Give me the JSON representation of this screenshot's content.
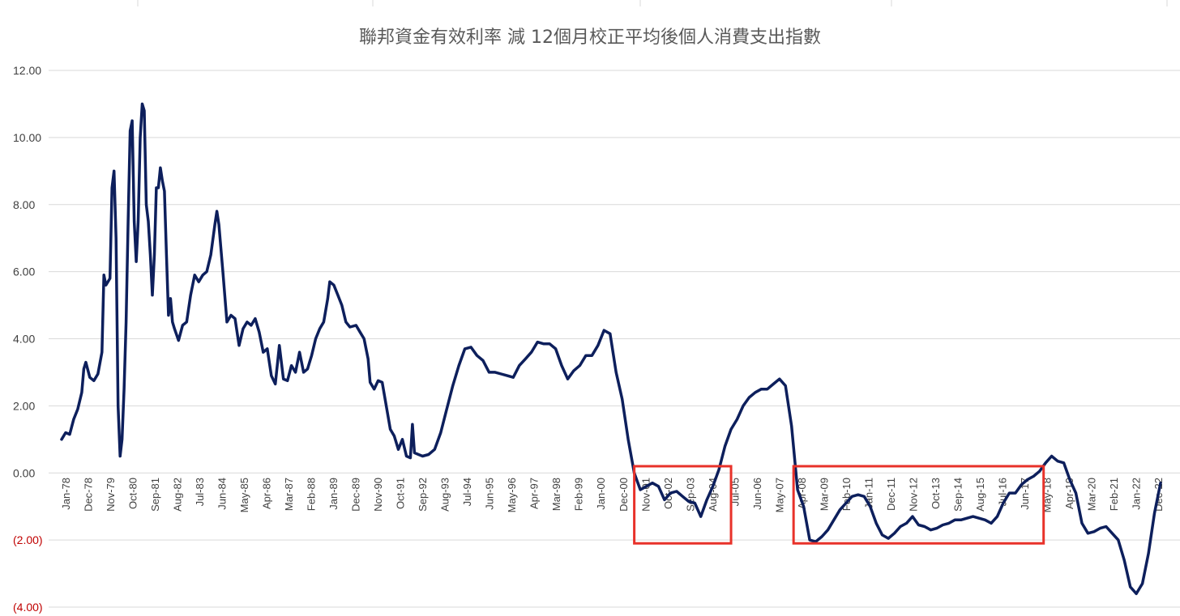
{
  "chart_data": {
    "type": "line",
    "title": "聯邦資金有效利率 減 12個月校正平均後個人消費支出指數",
    "xlabel": "",
    "ylabel": "",
    "ylim": [
      -4,
      12
    ],
    "grid": "horizontal",
    "y_ticks": [
      {
        "value": 12,
        "label": "12.00",
        "color": "#404040"
      },
      {
        "value": 10,
        "label": "10.00",
        "color": "#404040"
      },
      {
        "value": 8,
        "label": "8.00",
        "color": "#404040"
      },
      {
        "value": 6,
        "label": "6.00",
        "color": "#404040"
      },
      {
        "value": 4,
        "label": "4.00",
        "color": "#404040"
      },
      {
        "value": 2,
        "label": "2.00",
        "color": "#404040"
      },
      {
        "value": 0,
        "label": "0.00",
        "color": "#404040"
      },
      {
        "value": -2,
        "label": "(2.00)",
        "color": "#c00000"
      },
      {
        "value": -4,
        "label": "(4.00)",
        "color": "#c00000"
      }
    ],
    "x_tick_labels": [
      "Jan-78",
      "Dec-78",
      "Nov-79",
      "Oct-80",
      "Sep-81",
      "Aug-82",
      "Jul-83",
      "Jun-84",
      "May-85",
      "Apr-86",
      "Mar-87",
      "Feb-88",
      "Jan-89",
      "Dec-89",
      "Nov-90",
      "Oct-91",
      "Sep-92",
      "Aug-93",
      "Jul-94",
      "Jun-95",
      "May-96",
      "Apr-97",
      "Mar-98",
      "Feb-99",
      "Jan-00",
      "Dec-00",
      "Nov-01",
      "Oct-02",
      "Sep-03",
      "Aug-04",
      "Jul-05",
      "Jun-06",
      "May-07",
      "Apr-08",
      "Mar-09",
      "Feb-10",
      "Jan-11",
      "Dec-11",
      "Nov-12",
      "Oct-13",
      "Sep-14",
      "Aug-15",
      "Jul-16",
      "Jun-17",
      "May-18",
      "Apr-19",
      "Mar-20",
      "Feb-21",
      "Jan-22",
      "Dec-22"
    ],
    "series": [
      {
        "color": "#0d1f5c",
        "points": [
          [
            "1978-01",
            1.0
          ],
          [
            "1978-03",
            1.2
          ],
          [
            "1978-05",
            1.15
          ],
          [
            "1978-07",
            1.6
          ],
          [
            "1978-09",
            1.9
          ],
          [
            "1978-11",
            2.4
          ],
          [
            "1978-12",
            3.1
          ],
          [
            "1979-01",
            3.3
          ],
          [
            "1979-03",
            2.85
          ],
          [
            "1979-05",
            2.75
          ],
          [
            "1979-07",
            2.95
          ],
          [
            "1979-09",
            3.6
          ],
          [
            "1979-10",
            5.9
          ],
          [
            "1979-11",
            5.6
          ],
          [
            "1979-12",
            5.7
          ],
          [
            "1980-01",
            5.8
          ],
          [
            "1980-02",
            8.5
          ],
          [
            "1980-03",
            9.0
          ],
          [
            "1980-04",
            7.0
          ],
          [
            "1980-05",
            2.0
          ],
          [
            "1980-06",
            0.5
          ],
          [
            "1980-07",
            1.0
          ],
          [
            "1980-08",
            2.5
          ],
          [
            "1980-09",
            4.5
          ],
          [
            "1980-10",
            7.5
          ],
          [
            "1980-11",
            10.2
          ],
          [
            "1980-12",
            10.5
          ],
          [
            "1981-01",
            7.5
          ],
          [
            "1981-02",
            6.3
          ],
          [
            "1981-03",
            7.5
          ],
          [
            "1981-04",
            10.0
          ],
          [
            "1981-05",
            11.0
          ],
          [
            "1981-06",
            10.8
          ],
          [
            "1981-07",
            8.0
          ],
          [
            "1981-08",
            7.5
          ],
          [
            "1981-09",
            6.5
          ],
          [
            "1981-10",
            5.3
          ],
          [
            "1981-11",
            6.5
          ],
          [
            "1981-12",
            8.5
          ],
          [
            "1982-01",
            8.5
          ],
          [
            "1982-02",
            9.1
          ],
          [
            "1982-03",
            8.7
          ],
          [
            "1982-04",
            8.4
          ],
          [
            "1982-05",
            6.5
          ],
          [
            "1982-06",
            4.7
          ],
          [
            "1982-07",
            5.2
          ],
          [
            "1982-08",
            4.5
          ],
          [
            "1982-09",
            4.3
          ],
          [
            "1982-11",
            3.95
          ],
          [
            "1983-01",
            4.4
          ],
          [
            "1983-03",
            4.5
          ],
          [
            "1983-05",
            5.3
          ],
          [
            "1983-07",
            5.9
          ],
          [
            "1983-09",
            5.7
          ],
          [
            "1983-11",
            5.9
          ],
          [
            "1984-01",
            6.0
          ],
          [
            "1984-03",
            6.5
          ],
          [
            "1984-05",
            7.4
          ],
          [
            "1984-06",
            7.8
          ],
          [
            "1984-07",
            7.4
          ],
          [
            "1984-09",
            6.0
          ],
          [
            "1984-11",
            4.5
          ],
          [
            "1985-01",
            4.7
          ],
          [
            "1985-03",
            4.6
          ],
          [
            "1985-05",
            3.8
          ],
          [
            "1985-07",
            4.3
          ],
          [
            "1985-09",
            4.5
          ],
          [
            "1985-11",
            4.4
          ],
          [
            "1986-01",
            4.6
          ],
          [
            "1986-03",
            4.2
          ],
          [
            "1986-05",
            3.6
          ],
          [
            "1986-07",
            3.7
          ],
          [
            "1986-09",
            2.9
          ],
          [
            "1986-11",
            2.65
          ],
          [
            "1987-01",
            3.8
          ],
          [
            "1987-03",
            2.8
          ],
          [
            "1987-05",
            2.75
          ],
          [
            "1987-07",
            3.2
          ],
          [
            "1987-09",
            3.0
          ],
          [
            "1987-11",
            3.6
          ],
          [
            "1988-01",
            3.0
          ],
          [
            "1988-03",
            3.1
          ],
          [
            "1988-05",
            3.5
          ],
          [
            "1988-07",
            4.0
          ],
          [
            "1988-09",
            4.3
          ],
          [
            "1988-11",
            4.5
          ],
          [
            "1989-01",
            5.2
          ],
          [
            "1989-02",
            5.7
          ],
          [
            "1989-04",
            5.6
          ],
          [
            "1989-06",
            5.3
          ],
          [
            "1989-08",
            5.0
          ],
          [
            "1989-10",
            4.5
          ],
          [
            "1989-12",
            4.35
          ],
          [
            "1990-03",
            4.4
          ],
          [
            "1990-05",
            4.2
          ],
          [
            "1990-07",
            4.0
          ],
          [
            "1990-09",
            3.4
          ],
          [
            "1990-10",
            2.7
          ],
          [
            "1990-12",
            2.5
          ],
          [
            "1991-02",
            2.75
          ],
          [
            "1991-04",
            2.7
          ],
          [
            "1991-06",
            2.0
          ],
          [
            "1991-08",
            1.3
          ],
          [
            "1991-10",
            1.1
          ],
          [
            "1991-12",
            0.7
          ],
          [
            "1992-02",
            1.0
          ],
          [
            "1992-04",
            0.5
          ],
          [
            "1992-06",
            0.45
          ],
          [
            "1992-07",
            1.45
          ],
          [
            "1992-08",
            0.6
          ],
          [
            "1992-10",
            0.55
          ],
          [
            "1992-12",
            0.5
          ],
          [
            "1993-03",
            0.55
          ],
          [
            "1993-06",
            0.7
          ],
          [
            "1993-09",
            1.2
          ],
          [
            "1993-12",
            1.9
          ],
          [
            "1994-03",
            2.6
          ],
          [
            "1994-06",
            3.2
          ],
          [
            "1994-09",
            3.7
          ],
          [
            "1994-12",
            3.75
          ],
          [
            "1995-03",
            3.5
          ],
          [
            "1995-06",
            3.35
          ],
          [
            "1995-09",
            3.0
          ],
          [
            "1995-12",
            3.0
          ],
          [
            "1996-03",
            2.95
          ],
          [
            "1996-06",
            2.9
          ],
          [
            "1996-09",
            2.85
          ],
          [
            "1996-12",
            3.2
          ],
          [
            "1997-03",
            3.4
          ],
          [
            "1997-06",
            3.6
          ],
          [
            "1997-09",
            3.9
          ],
          [
            "1997-12",
            3.85
          ],
          [
            "1998-03",
            3.85
          ],
          [
            "1998-06",
            3.7
          ],
          [
            "1998-09",
            3.2
          ],
          [
            "1998-12",
            2.8
          ],
          [
            "1999-03",
            3.05
          ],
          [
            "1999-06",
            3.2
          ],
          [
            "1999-09",
            3.5
          ],
          [
            "1999-12",
            3.5
          ],
          [
            "2000-03",
            3.8
          ],
          [
            "2000-06",
            4.25
          ],
          [
            "2000-09",
            4.15
          ],
          [
            "2000-12",
            3.0
          ],
          [
            "2001-03",
            2.2
          ],
          [
            "2001-06",
            1.0
          ],
          [
            "2001-09",
            0.0
          ],
          [
            "2001-12",
            -0.5
          ],
          [
            "2002-03",
            -0.4
          ],
          [
            "2002-06",
            -0.3
          ],
          [
            "2002-09",
            -0.4
          ],
          [
            "2002-12",
            -0.8
          ],
          [
            "2003-03",
            -0.6
          ],
          [
            "2003-06",
            -0.55
          ],
          [
            "2003-09",
            -0.7
          ],
          [
            "2003-12",
            -0.85
          ],
          [
            "2004-03",
            -0.9
          ],
          [
            "2004-06",
            -1.3
          ],
          [
            "2004-09",
            -0.8
          ],
          [
            "2004-12",
            -0.4
          ],
          [
            "2005-03",
            0.1
          ],
          [
            "2005-06",
            0.8
          ],
          [
            "2005-09",
            1.3
          ],
          [
            "2005-12",
            1.6
          ],
          [
            "2006-03",
            2.0
          ],
          [
            "2006-06",
            2.25
          ],
          [
            "2006-09",
            2.4
          ],
          [
            "2006-12",
            2.5
          ],
          [
            "2007-03",
            2.5
          ],
          [
            "2007-06",
            2.65
          ],
          [
            "2007-09",
            2.8
          ],
          [
            "2007-12",
            2.6
          ],
          [
            "2008-03",
            1.4
          ],
          [
            "2008-06",
            -0.5
          ],
          [
            "2008-09",
            -1.0
          ],
          [
            "2008-12",
            -2.0
          ],
          [
            "2009-03",
            -2.05
          ],
          [
            "2009-06",
            -1.9
          ],
          [
            "2009-09",
            -1.7
          ],
          [
            "2009-12",
            -1.4
          ],
          [
            "2010-03",
            -1.1
          ],
          [
            "2010-06",
            -0.9
          ],
          [
            "2010-09",
            -0.7
          ],
          [
            "2010-12",
            -0.65
          ],
          [
            "2011-03",
            -0.7
          ],
          [
            "2011-06",
            -1.0
          ],
          [
            "2011-09",
            -1.5
          ],
          [
            "2011-12",
            -1.85
          ],
          [
            "2012-03",
            -1.95
          ],
          [
            "2012-06",
            -1.8
          ],
          [
            "2012-09",
            -1.6
          ],
          [
            "2012-12",
            -1.5
          ],
          [
            "2013-03",
            -1.3
          ],
          [
            "2013-06",
            -1.55
          ],
          [
            "2013-09",
            -1.6
          ],
          [
            "2013-12",
            -1.7
          ],
          [
            "2014-03",
            -1.65
          ],
          [
            "2014-06",
            -1.55
          ],
          [
            "2014-09",
            -1.5
          ],
          [
            "2014-12",
            -1.4
          ],
          [
            "2015-03",
            -1.4
          ],
          [
            "2015-06",
            -1.35
          ],
          [
            "2015-09",
            -1.3
          ],
          [
            "2015-12",
            -1.35
          ],
          [
            "2016-03",
            -1.4
          ],
          [
            "2016-06",
            -1.5
          ],
          [
            "2016-09",
            -1.3
          ],
          [
            "2016-12",
            -0.9
          ],
          [
            "2017-03",
            -0.6
          ],
          [
            "2017-06",
            -0.6
          ],
          [
            "2017-09",
            -0.35
          ],
          [
            "2017-12",
            -0.2
          ],
          [
            "2018-03",
            -0.1
          ],
          [
            "2018-06",
            0.05
          ],
          [
            "2018-09",
            0.3
          ],
          [
            "2018-12",
            0.5
          ],
          [
            "2019-03",
            0.35
          ],
          [
            "2019-06",
            0.3
          ],
          [
            "2019-09",
            -0.2
          ],
          [
            "2019-12",
            -0.6
          ],
          [
            "2020-03",
            -1.5
          ],
          [
            "2020-06",
            -1.8
          ],
          [
            "2020-09",
            -1.75
          ],
          [
            "2020-12",
            -1.65
          ],
          [
            "2021-03",
            -1.6
          ],
          [
            "2021-06",
            -1.8
          ],
          [
            "2021-09",
            -2.0
          ],
          [
            "2021-12",
            -2.6
          ],
          [
            "2022-03",
            -3.4
          ],
          [
            "2022-06",
            -3.6
          ],
          [
            "2022-09",
            -3.3
          ],
          [
            "2022-12",
            -2.4
          ],
          [
            "2023-03",
            -1.2
          ],
          [
            "2023-06",
            -0.3
          ]
        ]
      }
    ],
    "highlight_boxes": [
      {
        "from": "2001-09",
        "to": "2005-09",
        "ymin": -2.1,
        "ymax": 0.2,
        "color": "#e8322a"
      },
      {
        "from": "2008-04",
        "to": "2018-08",
        "ymin": -2.1,
        "ymax": 0.2,
        "color": "#e8322a"
      }
    ],
    "colors": {
      "line": "#0d1f5c",
      "grid": "#d9d9d9",
      "box": "#e8322a"
    }
  }
}
